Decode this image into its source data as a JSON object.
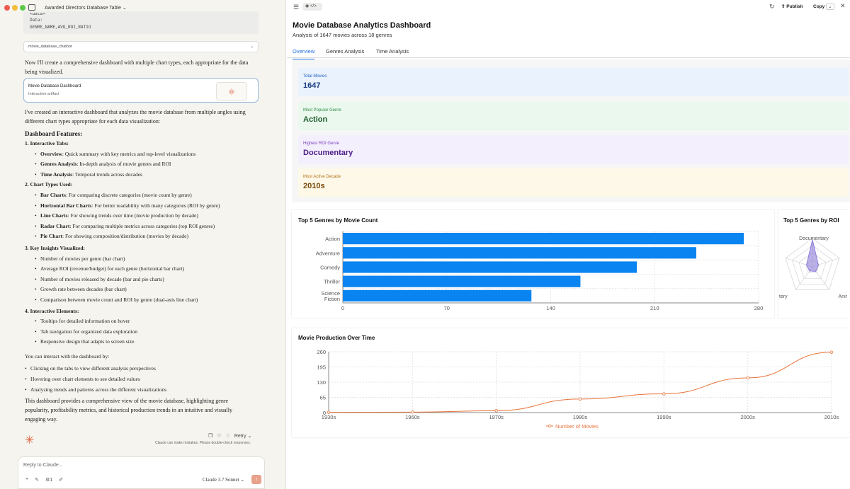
{
  "left": {
    "window_title": "Awarded Directors Database Table",
    "code_lines": [
      "<data>",
      "Data:",
      "GENRE_NAME,AVG_ROI_RATIO"
    ],
    "source_chip": "movie_database_chatbot",
    "intro": "Now I'll create a comprehensive dashboard with multiple chart types, each appropriate for the data being visualized.",
    "artifact": {
      "title": "Movie Database Dashboard",
      "subtitle": "Interactive artifact"
    },
    "summary": "I've created an interactive dashboard that analyzes the movie database from multiple angles using different chart types appropriate for each data visualization:",
    "features_heading": "Dashboard Features:",
    "sections": [
      {
        "heading": "1. Interactive Tabs:",
        "items": [
          {
            "b": "Overview",
            "t": ": Quick summary with key metrics and top-level visualizations"
          },
          {
            "b": "Genres Analysis",
            "t": ": In-depth analysis of movie genres and ROI"
          },
          {
            "b": "Time Analysis",
            "t": ": Temporal trends across decades"
          }
        ]
      },
      {
        "heading": "2. Chart Types Used:",
        "items": [
          {
            "b": "Bar Charts",
            "t": ": For comparing discrete categories (movie count by genre)"
          },
          {
            "b": "Horizontal Bar Charts",
            "t": ": For better readability with many categories (ROI by genre)"
          },
          {
            "b": "Line Charts",
            "t": ": For showing trends over time (movie production by decade)"
          },
          {
            "b": "Radar Chart",
            "t": ": For comparing multiple metrics across categories (top ROI genres)"
          },
          {
            "b": "Pie Chart",
            "t": ": For showing composition/distribution (movies by decade)"
          }
        ]
      },
      {
        "heading": "3. Key Insights Visualized:",
        "items": [
          {
            "b": "",
            "t": "Number of movies per genre (bar chart)"
          },
          {
            "b": "",
            "t": "Average ROI (revenue/budget) for each genre (horizontal bar chart)"
          },
          {
            "b": "",
            "t": "Number of movies released by decade (bar and pie charts)"
          },
          {
            "b": "",
            "t": "Growth rate between decades (bar chart)"
          },
          {
            "b": "",
            "t": "Comparison between movie count and ROI by genre (dual-axis line chart)"
          }
        ]
      },
      {
        "heading": "4. Interactive Elements:",
        "items": [
          {
            "b": "",
            "t": "Tooltips for detailed information on hover"
          },
          {
            "b": "",
            "t": "Tab navigation for organized data exploration"
          },
          {
            "b": "",
            "t": "Responsive design that adapts to screen size"
          }
        ]
      }
    ],
    "interact_heading": "You can interact with the dashboard by:",
    "interact_items": [
      "Clicking on the tabs to view different analysis perspectives",
      "Hovering over chart elements to see detailed values",
      "Analyzing trends and patterns across the different visualizations"
    ],
    "closing": "This dashboard provides a comprehensive view of the movie database, highlighting genre popularity, profitability metrics, and historical production trends in an intuitive and visually engaging way.",
    "retry_label": "Retry",
    "disclaimer": "Claude can make mistakes. Please double-check responses.",
    "reply_placeholder": "Reply to Claude...",
    "tool_count": "1",
    "model": "Claude 3.7 Sonnet"
  },
  "right": {
    "publish_label": "Publish",
    "copy_label": "Copy",
    "title": "Movie Database Analytics Dashboard",
    "subtitle": "Analysis of 1647 movies across 18 genres",
    "tabs": [
      "Overview",
      "Genres Analysis",
      "Time Analysis"
    ],
    "stats": [
      {
        "label": "Total Movies",
        "value": "1647",
        "bg": "#eaf2fd",
        "label_color": "#1f5fbf",
        "value_color": "#1a3f80"
      },
      {
        "label": "Most Popular Genre",
        "value": "Action",
        "bg": "#eaf8ee",
        "label_color": "#2e8b45",
        "value_color": "#1d5c2c"
      },
      {
        "label": "Highest ROI Genre",
        "value": "Documentary",
        "bg": "#f4effc",
        "label_color": "#7a3fbf",
        "value_color": "#4d1e8a"
      },
      {
        "label": "Most Active Decade",
        "value": "2010s",
        "bg": "#fdf8e8",
        "label_color": "#b5741a",
        "value_color": "#7a4a0c"
      }
    ],
    "bar_card_title": "Top 5 Genres by Movie Count",
    "radar_card_title": "Top 5 Genres by ROI",
    "line_card_title": "Movie Production Over Time"
  },
  "chart_data": [
    {
      "type": "bar",
      "orientation": "horizontal",
      "title": "Top 5 Genres by Movie Count",
      "categories": [
        "Action",
        "Adventure",
        "Comedy",
        "Thriller",
        "Science Fiction"
      ],
      "values": [
        270,
        238,
        198,
        160,
        127
      ],
      "xlim": [
        0,
        280
      ],
      "xticks": [
        0,
        70,
        140,
        210,
        280
      ],
      "color": "#0a84f0",
      "grid": true
    },
    {
      "type": "radar",
      "title": "Top 5 Genres by ROI",
      "axis_labels": [
        "Documentary",
        "Anir",
        "tery"
      ],
      "color": "#8e7cd8",
      "grid": true
    },
    {
      "type": "line",
      "title": "Movie Production Over Time",
      "x": [
        "1930s",
        "1960s",
        "1970s",
        "1980s",
        "1990s",
        "2000s",
        "2010s"
      ],
      "series": [
        {
          "name": "Number of Movies",
          "values": [
            1,
            2,
            8,
            58,
            80,
            148,
            258
          ]
        }
      ],
      "ylim": [
        0,
        260
      ],
      "yticks": [
        0,
        65,
        130,
        195,
        260
      ],
      "color": "#e8743b",
      "legend": "bottom",
      "grid": true
    }
  ]
}
